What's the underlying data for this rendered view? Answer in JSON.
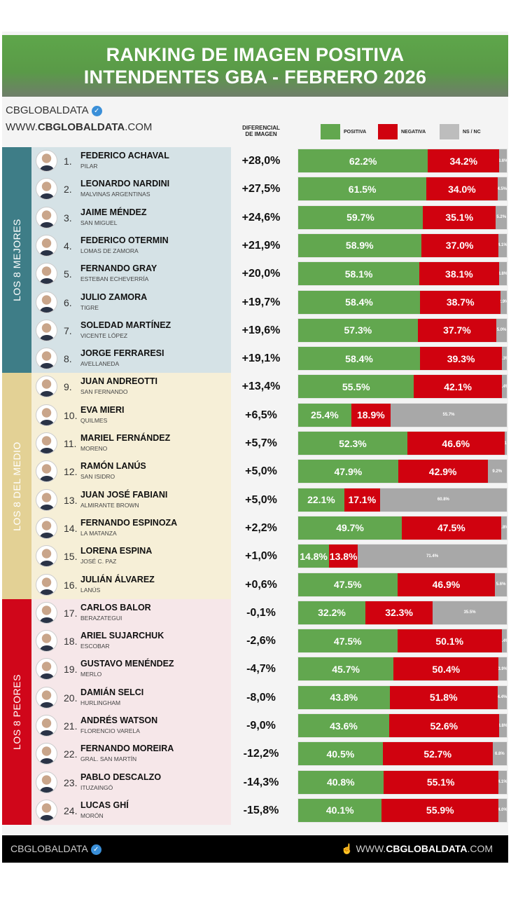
{
  "title": {
    "line1": "RANKING DE IMAGEN POSITIVA",
    "line2": "INTENDENTES GBA - FEBRERO 2026"
  },
  "header": {
    "brand": "CBGLOBALDATA",
    "site_prefix": "WWW.",
    "site_bold": "CBGLOBALDATA",
    "site_suffix": ".COM",
    "diff_label_1": "DIFERENCIAL",
    "diff_label_2": "DE IMAGEN"
  },
  "footer": {
    "brand": "CBGLOBALDATA",
    "site_prefix": "WWW.",
    "site_bold": "CBGLOBALDATA",
    "site_suffix": ".COM",
    "icon": "hand-pointer-icon"
  },
  "colors": {
    "positive": "#62a74f",
    "negative": "#d0020f",
    "nsnc": "#a8a8a8",
    "title": "#5ea64a",
    "verified": "#3a8fd8"
  },
  "sections": [
    {
      "label": "LOS 8 MEJORES",
      "color": "#3e7d87",
      "bg": "#d5e2e6"
    },
    {
      "label": "LOS 8 DEL MEDIO",
      "color": "#e3d195",
      "bg": "#f6efd7"
    },
    {
      "label": "LOS 8 PEORES",
      "color": "#d0061a",
      "bg": "#f6e7e9"
    }
  ],
  "chart_data": {
    "type": "bar",
    "stacked": true,
    "orientation": "horizontal",
    "title": "RANKING DE IMAGEN POSITIVA INTENDENTES GBA - FEBRERO 2026",
    "legend": [
      "POSITIVA",
      "NEGATIVA",
      "NS / NC"
    ],
    "legend_position": "top",
    "rows": [
      {
        "rank": "1.",
        "name": "FEDERICO ACHAVAL",
        "city": "PILAR",
        "diff": "+28,0%",
        "positive": 62.2,
        "negative": 34.2,
        "nsnc": 3.6
      },
      {
        "rank": "2.",
        "name": "LEONARDO NARDINI",
        "city": "MALVINAS ARGENTINAS",
        "diff": "+27,5%",
        "positive": 61.5,
        "negative": 34.0,
        "nsnc": 4.5
      },
      {
        "rank": "3.",
        "name": "JAIME MÉNDEZ",
        "city": "SAN MIGUEL",
        "diff": "+24,6%",
        "positive": 59.7,
        "negative": 35.1,
        "nsnc": 5.2
      },
      {
        "rank": "4.",
        "name": "FEDERICO OTERMIN",
        "city": "LOMAS DE ZAMORA",
        "diff": "+21,9%",
        "positive": 58.9,
        "negative": 37.0,
        "nsnc": 4.1
      },
      {
        "rank": "5.",
        "name": "FERNANDO GRAY",
        "city": "ESTEBAN ECHEVERRÍA",
        "diff": "+20,0%",
        "positive": 58.1,
        "negative": 38.1,
        "nsnc": 3.8
      },
      {
        "rank": "6.",
        "name": "JULIO ZAMORA",
        "city": "TIGRE",
        "diff": "+19,7%",
        "positive": 58.4,
        "negative": 38.7,
        "nsnc": 2.9
      },
      {
        "rank": "7.",
        "name": "SOLEDAD MARTÍNEZ",
        "city": "VICENTE LÓPEZ",
        "diff": "+19,6%",
        "positive": 57.3,
        "negative": 37.7,
        "nsnc": 5.0
      },
      {
        "rank": "8.",
        "name": "JORGE FERRARESI",
        "city": "AVELLANEDA",
        "diff": "+19,1%",
        "positive": 58.4,
        "negative": 39.3,
        "nsnc": 2.3
      },
      {
        "rank": "9.",
        "name": "JUAN ANDREOTTI",
        "city": "SAN FERNANDO",
        "diff": "+13,4%",
        "positive": 55.5,
        "negative": 42.1,
        "nsnc": 2.4
      },
      {
        "rank": "10.",
        "name": "EVA MIERI",
        "city": "QUILMES",
        "diff": "+6,5%",
        "positive": 25.4,
        "negative": 18.9,
        "nsnc": 55.7
      },
      {
        "rank": "11.",
        "name": "MARIEL FERNÁNDEZ",
        "city": "MORENO",
        "diff": "+5,7%",
        "positive": 52.3,
        "negative": 46.6,
        "nsnc": 1.1
      },
      {
        "rank": "12.",
        "name": "RAMÓN LANÚS",
        "city": "SAN ISIDRO",
        "diff": "+5,0%",
        "positive": 47.9,
        "negative": 42.9,
        "nsnc": 9.2
      },
      {
        "rank": "13.",
        "name": "JUAN JOSÉ FABIANI",
        "city": "ALMIRANTE BROWN",
        "diff": "+5,0%",
        "positive": 22.1,
        "negative": 17.1,
        "nsnc": 60.8
      },
      {
        "rank": "14.",
        "name": "FERNANDO ESPINOZA",
        "city": "LA MATANZA",
        "diff": "+2,2%",
        "positive": 49.7,
        "negative": 47.5,
        "nsnc": 2.8
      },
      {
        "rank": "15.",
        "name": "LORENA ESPINA",
        "city": "JOSÉ C. PAZ",
        "diff": "+1,0%",
        "positive": 14.8,
        "negative": 13.8,
        "nsnc": 71.4
      },
      {
        "rank": "16.",
        "name": "JULIÁN ÁLVAREZ",
        "city": "LANÚS",
        "diff": "+0,6%",
        "positive": 47.5,
        "negative": 46.9,
        "nsnc": 5.6
      },
      {
        "rank": "17.",
        "name": "CARLOS BALOR",
        "city": "BERAZATEGUI",
        "diff": "-0,1%",
        "positive": 32.2,
        "negative": 32.3,
        "nsnc": 35.5
      },
      {
        "rank": "18.",
        "name": "ARIEL SUJARCHUK",
        "city": "ESCOBAR",
        "diff": "-2,6%",
        "positive": 47.5,
        "negative": 50.1,
        "nsnc": 2.4
      },
      {
        "rank": "19.",
        "name": "GUSTAVO MENÉNDEZ",
        "city": "MERLO",
        "diff": "-4,7%",
        "positive": 45.7,
        "negative": 50.4,
        "nsnc": 3.9
      },
      {
        "rank": "20.",
        "name": "DAMIÁN SELCI",
        "city": "HURLINGHAM",
        "diff": "-8,0%",
        "positive": 43.8,
        "negative": 51.8,
        "nsnc": 4.4
      },
      {
        "rank": "21.",
        "name": "ANDRÉS WATSON",
        "city": "FLORENCIO VARELA",
        "diff": "-9,0%",
        "positive": 43.6,
        "negative": 52.6,
        "nsnc": 3.8
      },
      {
        "rank": "22.",
        "name": "FERNANDO MOREIRA",
        "city": "GRAL. SAN MARTÍN",
        "diff": "-12,2%",
        "positive": 40.5,
        "negative": 52.7,
        "nsnc": 6.8
      },
      {
        "rank": "23.",
        "name": "PABLO DESCALZO",
        "city": "ITUZAINGÓ",
        "diff": "-14,3%",
        "positive": 40.8,
        "negative": 55.1,
        "nsnc": 4.1
      },
      {
        "rank": "24.",
        "name": "LUCAS GHÍ",
        "city": "MORÓN",
        "diff": "-15,8%",
        "positive": 40.1,
        "negative": 55.9,
        "nsnc": 4.0
      }
    ]
  }
}
